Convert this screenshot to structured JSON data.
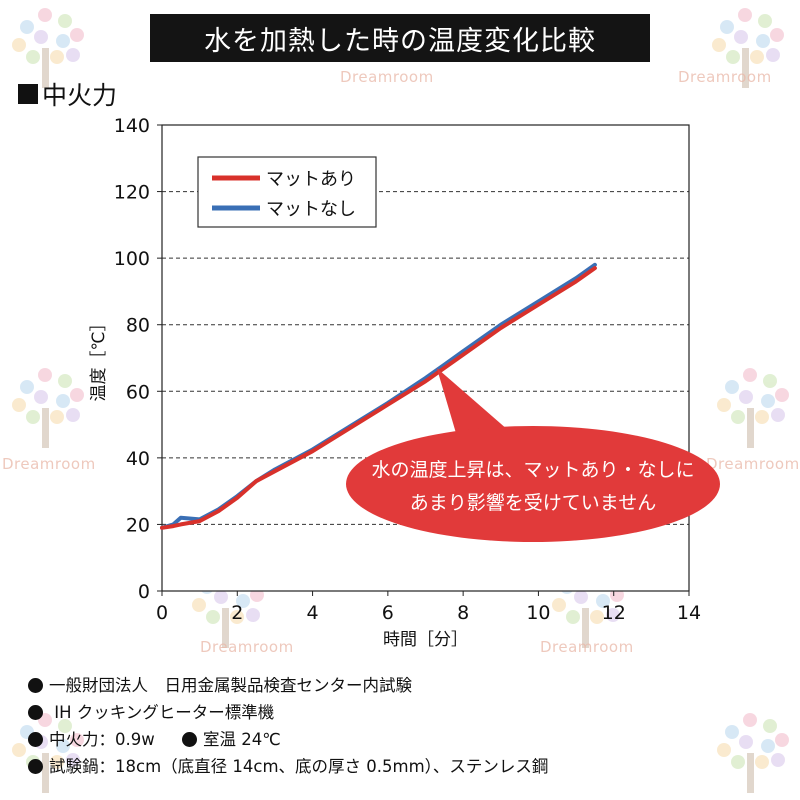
{
  "title": "水を加熱した時の温度変化比較",
  "section": "中火力",
  "watermark": "Dreamroom",
  "chart_data": {
    "type": "line",
    "xlabel": "時間［分］",
    "ylabel": "温度［℃］",
    "xlim": [
      0,
      14
    ],
    "ylim": [
      0,
      140
    ],
    "xticks": [
      "0",
      "2",
      "4",
      "6",
      "8",
      "10",
      "12",
      "14"
    ],
    "yticks": [
      "0",
      "20",
      "40",
      "60",
      "80",
      "100",
      "120",
      "140"
    ],
    "grid": "horizontal-dashed",
    "legend_position": "top-left",
    "series": [
      {
        "name": "マットあり",
        "color": "#d8312b",
        "x": [
          0,
          0.3,
          0.5,
          1,
          1.5,
          2,
          2.5,
          3,
          4,
          5,
          6,
          7,
          7.5,
          8,
          9,
          10,
          11,
          11.5
        ],
        "y": [
          19,
          19.5,
          20,
          21,
          24,
          28,
          33,
          36,
          42,
          49,
          56,
          63,
          67,
          71,
          79,
          86,
          93,
          97
        ]
      },
      {
        "name": "マットなし",
        "color": "#3a6fb5",
        "x": [
          0,
          0.3,
          0.5,
          1,
          1.5,
          2,
          2.5,
          3,
          4,
          5,
          6,
          7,
          7.5,
          8,
          9,
          10,
          11,
          11.5
        ],
        "y": [
          19,
          20,
          22,
          21.5,
          24.5,
          28.5,
          33,
          36.5,
          42.5,
          49.5,
          56.5,
          64,
          68,
          72,
          80,
          87,
          94,
          98
        ]
      }
    ],
    "annotation": {
      "lines": [
        "水の温度上昇は、マットあり・なしに",
        "あまり影響を受けていません"
      ],
      "color": "#e13a3a",
      "target": {
        "x": 7.3,
        "y": 67
      }
    }
  },
  "notes": [
    {
      "text": "一般財団法人　日用金属製品検査センター内試験"
    },
    {
      "text": " IH クッキングヒーター標準機"
    },
    {
      "text": "中火力：0.9w",
      "text2": "室温 24℃"
    },
    {
      "text": "試験鍋：18cm（底直径 14cm、底の厚さ 0.5mm）、ステンレス鋼"
    }
  ]
}
